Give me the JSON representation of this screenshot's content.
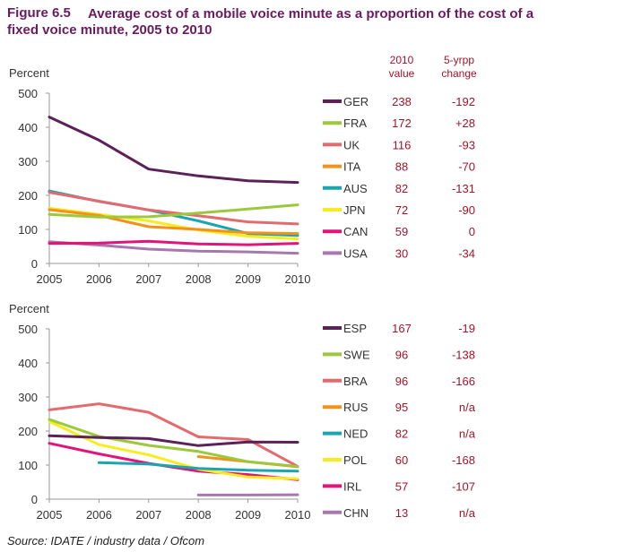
{
  "figure": {
    "label": "Figure 6.5",
    "title_line1": "Average cost of a mobile voice minute as a proportion of the cost of a",
    "title_line2": "fixed voice minute, 2005 to 2010",
    "col_value_header_1": "2010",
    "col_value_header_2": "value",
    "col_change_header_1": "5-yrpp",
    "col_change_header_2": "change",
    "source": "Source: IDATE / industry data / Ofcom"
  },
  "colors": {
    "axis": "#999999",
    "tick_text": "#333333",
    "value_text": "#a3142a"
  },
  "chart_data": [
    {
      "type": "line",
      "ylabel": "Percent",
      "x": [
        2005,
        2006,
        2007,
        2008,
        2009,
        2010
      ],
      "xlim": [
        2005,
        2010
      ],
      "ylim": [
        0,
        500
      ],
      "yticks": [
        0,
        100,
        200,
        300,
        400,
        500
      ],
      "grid": false,
      "legend_position": "right",
      "series": [
        {
          "name": "GER",
          "color": "#5c2157",
          "values": [
            430,
            362,
            277,
            257,
            243,
            238
          ],
          "value_2010": "238",
          "change": "-192"
        },
        {
          "name": "FRA",
          "color": "#9cc83b",
          "values": [
            144,
            136,
            137,
            148,
            160,
            172
          ],
          "value_2010": "172",
          "change": "+28"
        },
        {
          "name": "UK",
          "color": "#e36b6f",
          "values": [
            209,
            183,
            157,
            140,
            122,
            116
          ],
          "value_2010": "116",
          "change": "-93"
        },
        {
          "name": "ITA",
          "color": "#f2911c",
          "values": [
            158,
            141,
            108,
            100,
            90,
            88
          ],
          "value_2010": "88",
          "change": "-70"
        },
        {
          "name": "AUS",
          "color": "#1aa5b1",
          "values": [
            213,
            182,
            157,
            125,
            88,
            82
          ],
          "value_2010": "82",
          "change": "-131"
        },
        {
          "name": "JPN",
          "color": "#f7ec1d",
          "values": [
            162,
            144,
            125,
            98,
            80,
            72
          ],
          "value_2010": "72",
          "change": "-90"
        },
        {
          "name": "CAN",
          "color": "#e0157a",
          "values": [
            59,
            60,
            65,
            57,
            55,
            59
          ],
          "value_2010": "59",
          "change": "0"
        },
        {
          "name": "USA",
          "color": "#a678ae",
          "values": [
            64,
            54,
            42,
            36,
            34,
            30
          ],
          "value_2010": "30",
          "change": "-34"
        }
      ]
    },
    {
      "type": "line",
      "ylabel": "Percent",
      "x": [
        2005,
        2006,
        2007,
        2008,
        2009,
        2010
      ],
      "xlim": [
        2005,
        2010
      ],
      "ylim": [
        0,
        500
      ],
      "yticks": [
        0,
        100,
        200,
        300,
        400,
        500
      ],
      "grid": false,
      "legend_position": "right",
      "series": [
        {
          "name": "ESP",
          "color": "#5c2157",
          "values": [
            186,
            181,
            178,
            157,
            168,
            167
          ],
          "value_2010": "167",
          "change": "-19"
        },
        {
          "name": "SWE",
          "color": "#9cc83b",
          "values": [
            234,
            184,
            158,
            140,
            110,
            96
          ],
          "value_2010": "96",
          "change": "-138"
        },
        {
          "name": "BRA",
          "color": "#e36b6f",
          "values": [
            262,
            280,
            255,
            183,
            175,
            96
          ],
          "value_2010": "96",
          "change": "-166"
        },
        {
          "name": "RUS",
          "color": "#f2911c",
          "values": [
            null,
            null,
            null,
            125,
            110,
            95
          ],
          "value_2010": "95",
          "change": "n/a"
        },
        {
          "name": "NED",
          "color": "#1aa5b1",
          "values": [
            null,
            107,
            103,
            90,
            85,
            82
          ],
          "value_2010": "82",
          "change": "n/a"
        },
        {
          "name": "POL",
          "color": "#f7ec1d",
          "values": [
            228,
            160,
            130,
            88,
            65,
            60
          ],
          "value_2010": "60",
          "change": "-168"
        },
        {
          "name": "IRL",
          "color": "#e0157a",
          "values": [
            164,
            133,
            105,
            82,
            72,
            57
          ],
          "value_2010": "57",
          "change": "-107"
        },
        {
          "name": "CHN",
          "color": "#a678ae",
          "values": [
            null,
            null,
            null,
            12,
            12,
            13
          ],
          "value_2010": "13",
          "change": "n/a"
        }
      ]
    }
  ]
}
